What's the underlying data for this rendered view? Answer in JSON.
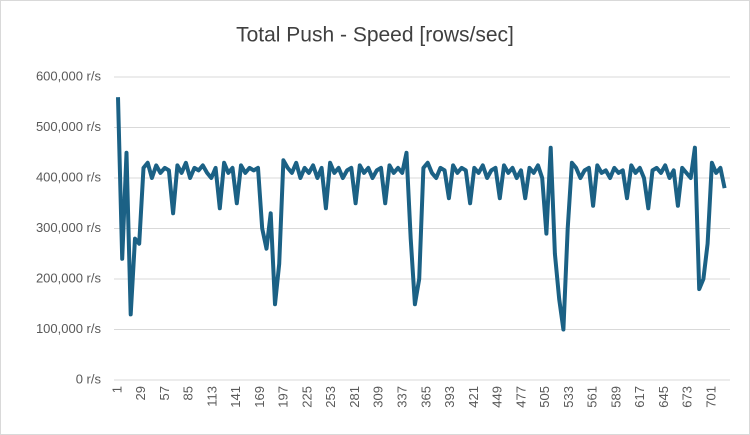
{
  "chart_data": {
    "type": "line",
    "title": "Total Push - Speed [rows/sec]",
    "x": [
      1,
      6,
      11,
      16,
      21,
      26,
      31,
      36,
      41,
      46,
      51,
      56,
      61,
      66,
      71,
      76,
      81,
      86,
      91,
      96,
      101,
      106,
      111,
      116,
      121,
      126,
      131,
      136,
      141,
      146,
      151,
      156,
      161,
      166,
      171,
      176,
      181,
      186,
      191,
      196,
      201,
      206,
      211,
      216,
      221,
      226,
      231,
      236,
      241,
      246,
      251,
      256,
      261,
      266,
      271,
      276,
      281,
      286,
      291,
      296,
      301,
      306,
      311,
      316,
      321,
      326,
      331,
      336,
      341,
      346,
      351,
      356,
      361,
      366,
      371,
      376,
      381,
      386,
      391,
      396,
      401,
      406,
      411,
      416,
      421,
      426,
      431,
      436,
      441,
      446,
      451,
      456,
      461,
      466,
      471,
      476,
      481,
      486,
      491,
      496,
      501,
      506,
      511,
      516,
      521,
      526,
      531,
      536,
      541,
      546,
      551,
      556,
      561,
      566,
      571,
      576,
      581,
      586,
      591,
      596,
      601,
      606,
      611,
      616,
      621,
      626,
      631,
      636,
      641,
      646,
      651,
      656,
      661,
      666,
      671,
      676,
      681,
      686,
      691,
      696,
      701,
      706,
      711,
      716
    ],
    "series": [
      {
        "color": "#1b6185",
        "values": [
          560000,
          240000,
          450000,
          130000,
          280000,
          270000,
          420000,
          430000,
          400000,
          425000,
          410000,
          420000,
          415000,
          330000,
          425000,
          410000,
          430000,
          400000,
          420000,
          415000,
          425000,
          410000,
          400000,
          420000,
          340000,
          430000,
          410000,
          420000,
          350000,
          425000,
          410000,
          420000,
          415000,
          420000,
          300000,
          260000,
          330000,
          150000,
          230000,
          435000,
          420000,
          410000,
          430000,
          400000,
          420000,
          410000,
          425000,
          400000,
          420000,
          340000,
          430000,
          410000,
          420000,
          400000,
          415000,
          420000,
          350000,
          425000,
          410000,
          420000,
          400000,
          415000,
          420000,
          350000,
          425000,
          410000,
          420000,
          410000,
          450000,
          280000,
          150000,
          200000,
          420000,
          430000,
          410000,
          400000,
          420000,
          415000,
          360000,
          425000,
          410000,
          420000,
          415000,
          350000,
          420000,
          410000,
          425000,
          400000,
          415000,
          420000,
          360000,
          425000,
          410000,
          420000,
          400000,
          415000,
          360000,
          420000,
          410000,
          425000,
          400000,
          290000,
          460000,
          250000,
          160000,
          100000,
          300000,
          430000,
          420000,
          400000,
          415000,
          420000,
          345000,
          425000,
          410000,
          415000,
          400000,
          420000,
          410000,
          415000,
          360000,
          425000,
          410000,
          420000,
          400000,
          340000,
          415000,
          420000,
          410000,
          425000,
          400000,
          415000,
          345000,
          420000,
          410000,
          400000,
          460000,
          180000,
          200000,
          270000,
          430000,
          410000,
          420000,
          380000
        ]
      }
    ],
    "xlim": [
      1,
      720
    ],
    "xticks": [
      1,
      29,
      57,
      85,
      113,
      141,
      169,
      197,
      225,
      253,
      281,
      309,
      337,
      365,
      393,
      421,
      449,
      477,
      505,
      533,
      561,
      589,
      617,
      645,
      673,
      701
    ],
    "ylim": [
      0,
      600000
    ],
    "yticks": [
      {
        "value": 0,
        "label": "0 r/s"
      },
      {
        "value": 100000,
        "label": "100,000 r/s"
      },
      {
        "value": 200000,
        "label": "200,000 r/s"
      },
      {
        "value": 300000,
        "label": "300,000 r/s"
      },
      {
        "value": 400000,
        "label": "400,000 r/s"
      },
      {
        "value": 500000,
        "label": "500,000 r/s"
      },
      {
        "value": 600000,
        "label": "600,000 r/s"
      }
    ],
    "grid": true
  }
}
